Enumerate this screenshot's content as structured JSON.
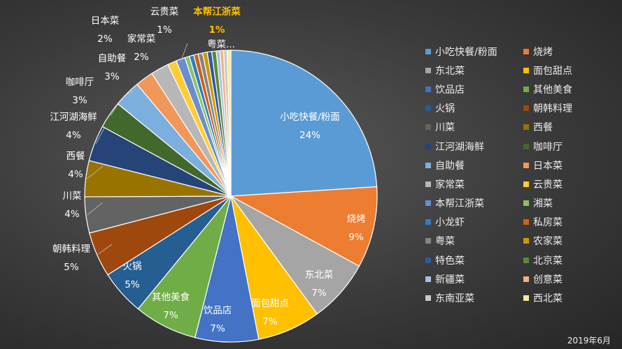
{
  "chart_data": {
    "type": "pie",
    "start_angle_deg": 0,
    "direction": "clockwise",
    "date_note": "2019年6月",
    "slices": [
      {
        "name": "小吃快餐/粉面",
        "value": 24,
        "label": "24%",
        "color": "#5b9bd5"
      },
      {
        "name": "烧烤",
        "value": 9,
        "label": "9%",
        "color": "#ed7d31"
      },
      {
        "name": "东北菜",
        "value": 7,
        "label": "7%",
        "color": "#a5a5a5"
      },
      {
        "name": "面包甜点",
        "value": 7,
        "label": "7%",
        "color": "#ffc000"
      },
      {
        "name": "饮品店",
        "value": 7,
        "label": "7%",
        "color": "#4472c4"
      },
      {
        "name": "其他美食",
        "value": 7,
        "label": "7%",
        "color": "#70ad47"
      },
      {
        "name": "火锅",
        "value": 5,
        "label": "5%",
        "color": "#255e91"
      },
      {
        "name": "朝韩料理",
        "value": 5,
        "label": "5%",
        "color": "#9e480e"
      },
      {
        "name": "川菜",
        "value": 4,
        "label": "4%",
        "color": "#636363"
      },
      {
        "name": "西餐",
        "value": 4,
        "label": "4%",
        "color": "#997300"
      },
      {
        "name": "江河湖海鲜",
        "value": 4,
        "label": "4%",
        "color": "#264478"
      },
      {
        "name": "咖啡厅",
        "value": 3,
        "label": "3%",
        "color": "#43682b"
      },
      {
        "name": "自助餐",
        "value": 3,
        "label": "3%",
        "color": "#7cafdd"
      },
      {
        "name": "日本菜",
        "value": 2,
        "label": "2%",
        "color": "#f1975a"
      },
      {
        "name": "家常菜",
        "value": 2,
        "label": "2%",
        "color": "#b7b7b7"
      },
      {
        "name": "云贵菜",
        "value": 1,
        "label": "1%",
        "color": "#ffcd33"
      },
      {
        "name": "本帮江浙菜",
        "value": 1,
        "label": "1%",
        "color": "#698ed0"
      },
      {
        "name": "湘菜",
        "value": 0.5,
        "label": "",
        "color": "#8cc168"
      },
      {
        "name": "小龙虾",
        "value": 0.5,
        "label": "",
        "color": "#327dc2"
      },
      {
        "name": "私房菜",
        "value": 0.5,
        "label": "",
        "color": "#d26012"
      },
      {
        "name": "粤菜",
        "value": 0.5,
        "label": "粤菜...",
        "color": "#848484"
      },
      {
        "name": "农家菜",
        "value": 0.5,
        "label": "",
        "color": "#cc9a00"
      },
      {
        "name": "特色菜",
        "value": 0.5,
        "label": "",
        "color": "#335aa1"
      },
      {
        "name": "北京菜",
        "value": 0.5,
        "label": "",
        "color": "#5a8a39"
      },
      {
        "name": "新疆菜",
        "value": 0.4,
        "label": "",
        "color": "#a3c2e6"
      },
      {
        "name": "创意菜",
        "value": 0.4,
        "label": "",
        "color": "#f4b183"
      },
      {
        "name": "东南亚菜",
        "value": 0.4,
        "label": "",
        "color": "#c9c9c9"
      },
      {
        "name": "西北菜",
        "value": 0.4,
        "label": "",
        "color": "#ffe699"
      }
    ]
  }
}
